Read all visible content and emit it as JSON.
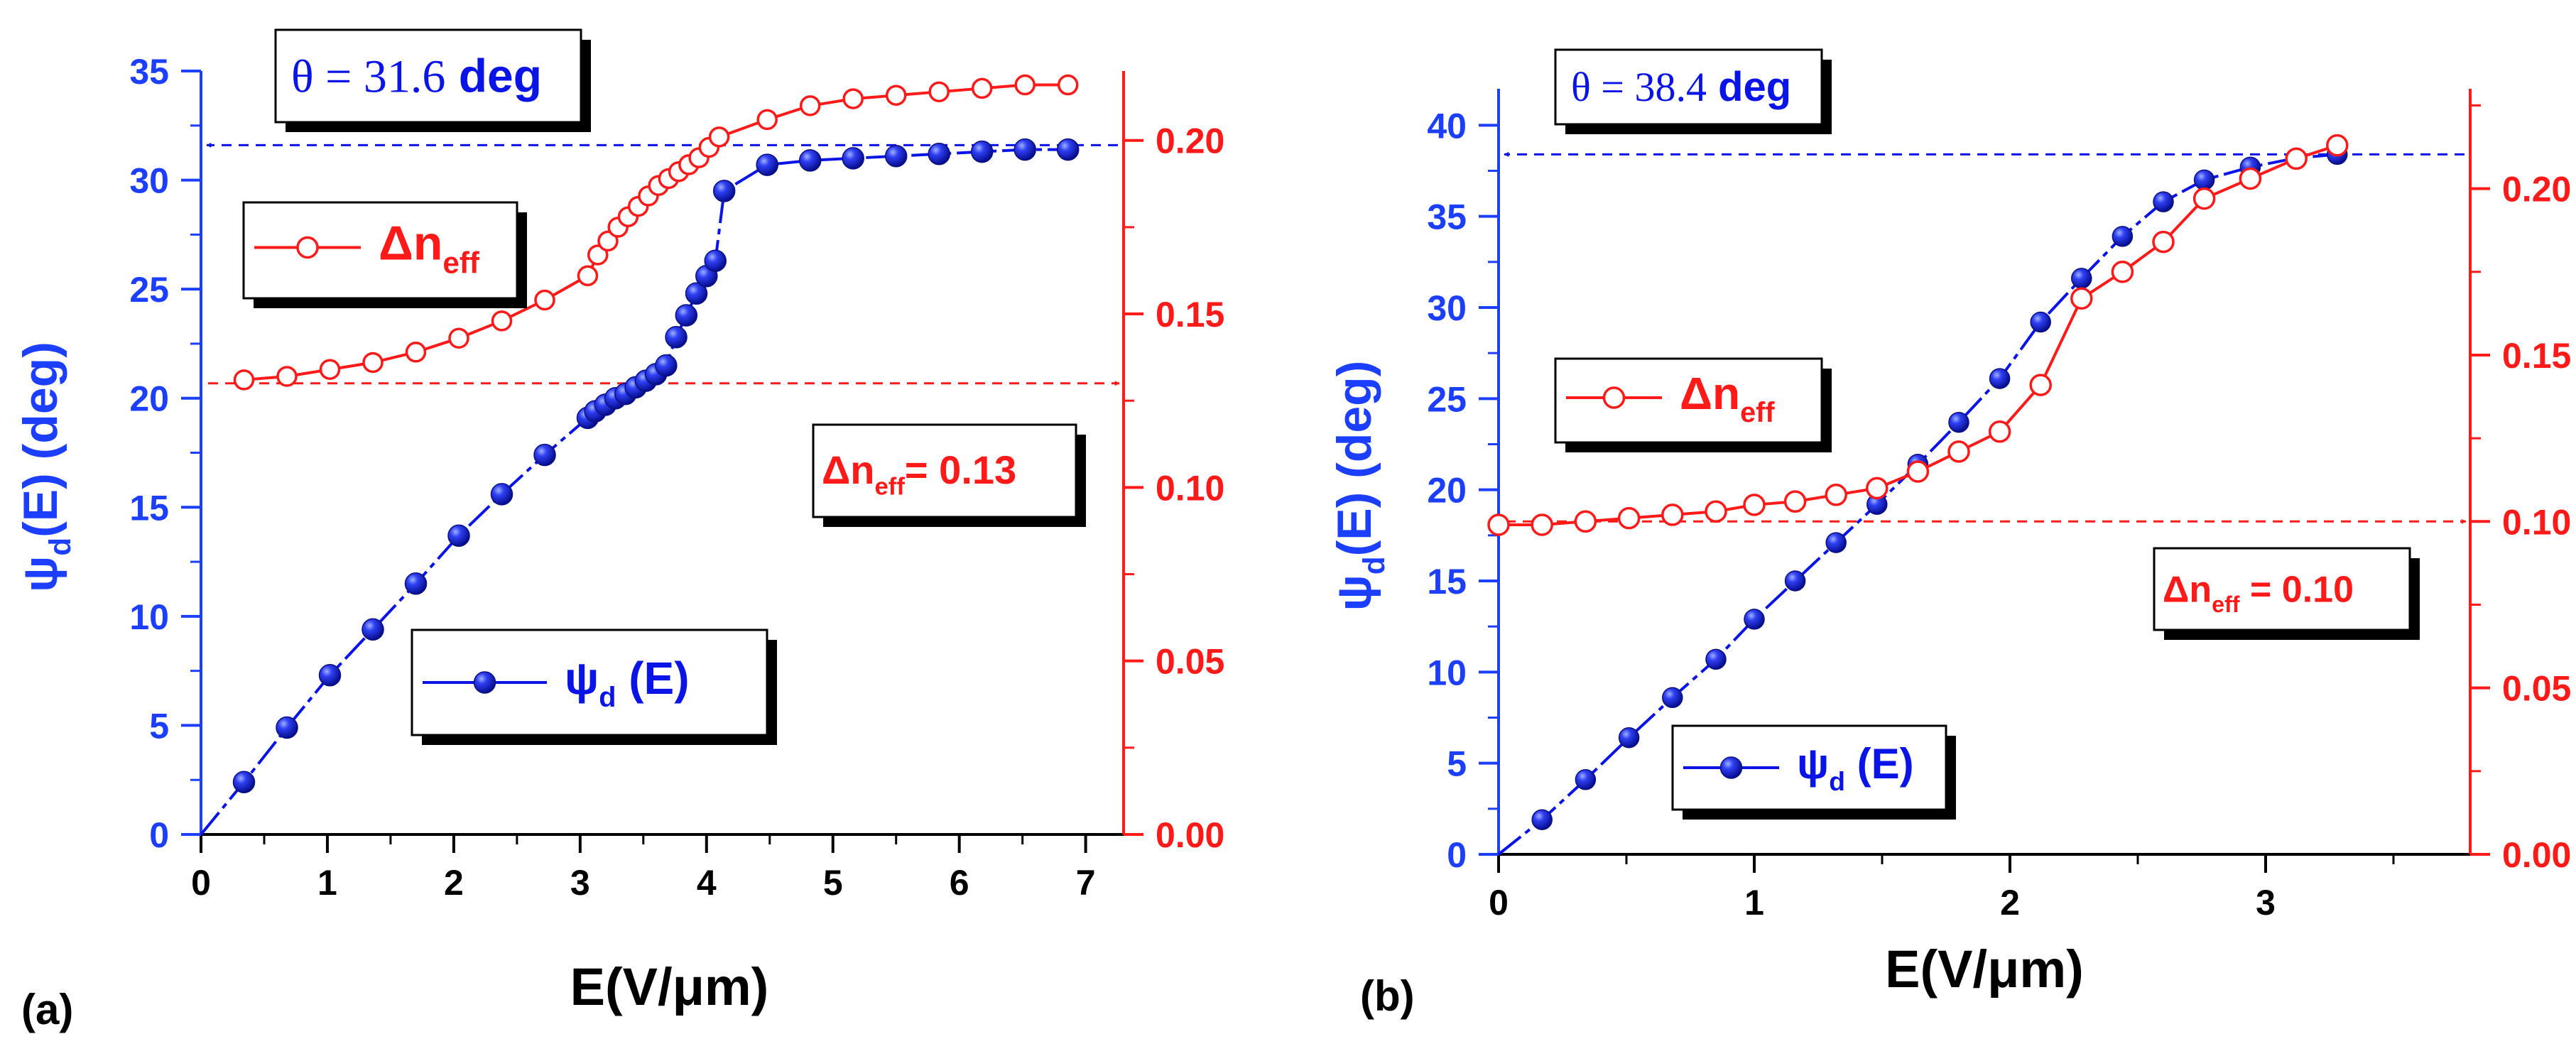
{
  "colors": {
    "psi": "#0a14e6",
    "dn": "#ff1a1a",
    "axis": "#000000",
    "psi_axis": "#1c3fff"
  },
  "chart_data": [
    {
      "panel_label": "(a)",
      "type": "line",
      "xlabel": "E(V/μm)",
      "ylabel_left": {
        "base": "ψ",
        "sub": "d",
        "rest": "(E) (deg)"
      },
      "xlim": [
        0,
        7.3
      ],
      "ylim_left": [
        0,
        35
      ],
      "ylim_right": [
        0,
        0.22
      ],
      "xticks": [
        0,
        1,
        2,
        3,
        4,
        5,
        6,
        7
      ],
      "xticklabels": [
        "0",
        "1",
        "2",
        "3",
        "4",
        "5",
        "6",
        "7"
      ],
      "yticks_left": [
        0,
        5,
        10,
        15,
        20,
        25,
        30,
        35
      ],
      "yticklabels_left": [
        "0",
        "5",
        "10",
        "15",
        "20",
        "25",
        "30",
        "35"
      ],
      "yticks_right": [
        0,
        0.05,
        0.1,
        0.15,
        0.2
      ],
      "yticklabels_right": [
        "0.00",
        "0.05",
        "0.10",
        "0.15",
        "0.20"
      ],
      "series": [
        {
          "name": "ψd (E)",
          "axis": "left",
          "marker": "filled",
          "x": [
            0,
            0.34,
            0.68,
            1.02,
            1.36,
            1.7,
            2.04,
            2.38,
            2.72,
            3.06,
            3.12,
            3.2,
            3.28,
            3.36,
            3.44,
            3.52,
            3.6,
            3.68,
            3.76,
            3.84,
            3.92,
            4.0,
            4.07,
            4.14,
            4.48,
            4.82,
            5.16,
            5.5,
            5.84,
            6.18,
            6.52,
            6.86
          ],
          "y": [
            0,
            2.4,
            4.9,
            7.3,
            9.4,
            11.5,
            13.7,
            15.6,
            17.4,
            19.1,
            19.4,
            19.7,
            20.0,
            20.2,
            20.5,
            20.8,
            21.1,
            21.5,
            22.8,
            23.8,
            24.8,
            25.6,
            26.3,
            29.5,
            30.7,
            30.9,
            31.0,
            31.1,
            31.2,
            31.3,
            31.4,
            31.4
          ]
        },
        {
          "name": "Δneff",
          "axis": "right",
          "marker": "open",
          "x": [
            0.34,
            0.68,
            1.02,
            1.36,
            1.7,
            2.04,
            2.38,
            2.72,
            3.06,
            3.14,
            3.22,
            3.3,
            3.38,
            3.46,
            3.54,
            3.62,
            3.7,
            3.78,
            3.86,
            3.94,
            4.02,
            4.1,
            4.48,
            4.82,
            5.16,
            5.5,
            5.84,
            6.18,
            6.52,
            6.86
          ],
          "y": [
            0.131,
            0.132,
            0.134,
            0.136,
            0.139,
            0.143,
            0.148,
            0.154,
            0.161,
            0.167,
            0.171,
            0.175,
            0.178,
            0.181,
            0.184,
            0.187,
            0.189,
            0.191,
            0.193,
            0.195,
            0.198,
            0.201,
            0.206,
            0.21,
            0.212,
            0.213,
            0.214,
            0.215,
            0.216,
            0.216
          ]
        }
      ],
      "annotations": {
        "theta": {
          "prefix": "θ = 31.6",
          "unit": "deg"
        },
        "dn_value": {
          "base": "Δn",
          "sub": "eff",
          "rest": "= 0.13"
        },
        "theta_arrow_value": 31.6,
        "dn_arrow_value": 0.13
      },
      "legend": [
        {
          "base": "Δn",
          "sub": "eff",
          "rest": ""
        },
        {
          "base": "ψ",
          "sub": "d",
          "rest": " (E)"
        }
      ]
    },
    {
      "panel_label": "(b)",
      "type": "line",
      "xlabel": "E(V/μm)",
      "ylabel_left": {
        "base": "ψ",
        "sub": "d",
        "rest": "(E) (deg)"
      },
      "xlim": [
        0,
        3.8
      ],
      "ylim_left": [
        0,
        42
      ],
      "ylim_right": [
        0,
        0.23
      ],
      "xticks": [
        0,
        1,
        2,
        3
      ],
      "xticklabels": [
        "0",
        "1",
        "2",
        "3"
      ],
      "yticks_left": [
        0,
        5,
        10,
        15,
        20,
        25,
        30,
        35,
        40
      ],
      "yticklabels_left": [
        "0",
        "5",
        "10",
        "15",
        "20",
        "25",
        "30",
        "35",
        "40"
      ],
      "yticks_right": [
        0,
        0.05,
        0.1,
        0.15,
        0.2
      ],
      "yticklabels_right": [
        "0.00",
        "0.05",
        "0.10",
        "0.15",
        "0.20"
      ],
      "series": [
        {
          "name": "ψd (E)",
          "axis": "left",
          "marker": "filled",
          "x": [
            0,
            0.17,
            0.34,
            0.51,
            0.68,
            0.85,
            1.0,
            1.16,
            1.32,
            1.48,
            1.64,
            1.8,
            1.96,
            2.12,
            2.28,
            2.44,
            2.6,
            2.76,
            2.94,
            3.12,
            3.28
          ],
          "y": [
            0,
            1.9,
            4.1,
            6.4,
            8.6,
            10.7,
            12.9,
            15.0,
            17.1,
            19.2,
            21.4,
            23.7,
            26.1,
            29.2,
            31.6,
            33.9,
            35.8,
            37.0,
            37.7,
            38.2,
            38.4
          ],
          "x_note": "open-circle markers below"
        },
        {
          "name": "Δneff",
          "axis": "right",
          "marker": "open",
          "x": [
            0.0,
            0.17,
            0.34,
            0.51,
            0.68,
            0.85,
            1.0,
            1.16,
            1.32,
            1.48,
            1.64,
            1.8,
            1.96,
            2.12,
            2.28,
            2.44,
            2.6,
            2.76,
            2.94,
            3.12,
            3.28
          ],
          "y": [
            0.099,
            0.099,
            0.1,
            0.101,
            0.102,
            0.103,
            0.105,
            0.106,
            0.108,
            0.11,
            0.115,
            0.121,
            0.127,
            0.141,
            0.167,
            0.175,
            0.184,
            0.197,
            0.203,
            0.209,
            0.213
          ]
        }
      ],
      "annotations": {
        "theta": {
          "prefix": "θ = 38.4",
          "unit": "deg"
        },
        "dn_value": {
          "base": "Δn",
          "sub": "eff",
          "rest": " = 0.10"
        },
        "theta_arrow_value": 38.4,
        "dn_arrow_value": 0.1
      },
      "legend": [
        {
          "base": "Δn",
          "sub": "eff",
          "rest": ""
        },
        {
          "base": "ψ",
          "sub": "d",
          "rest": " (E)"
        }
      ]
    }
  ]
}
